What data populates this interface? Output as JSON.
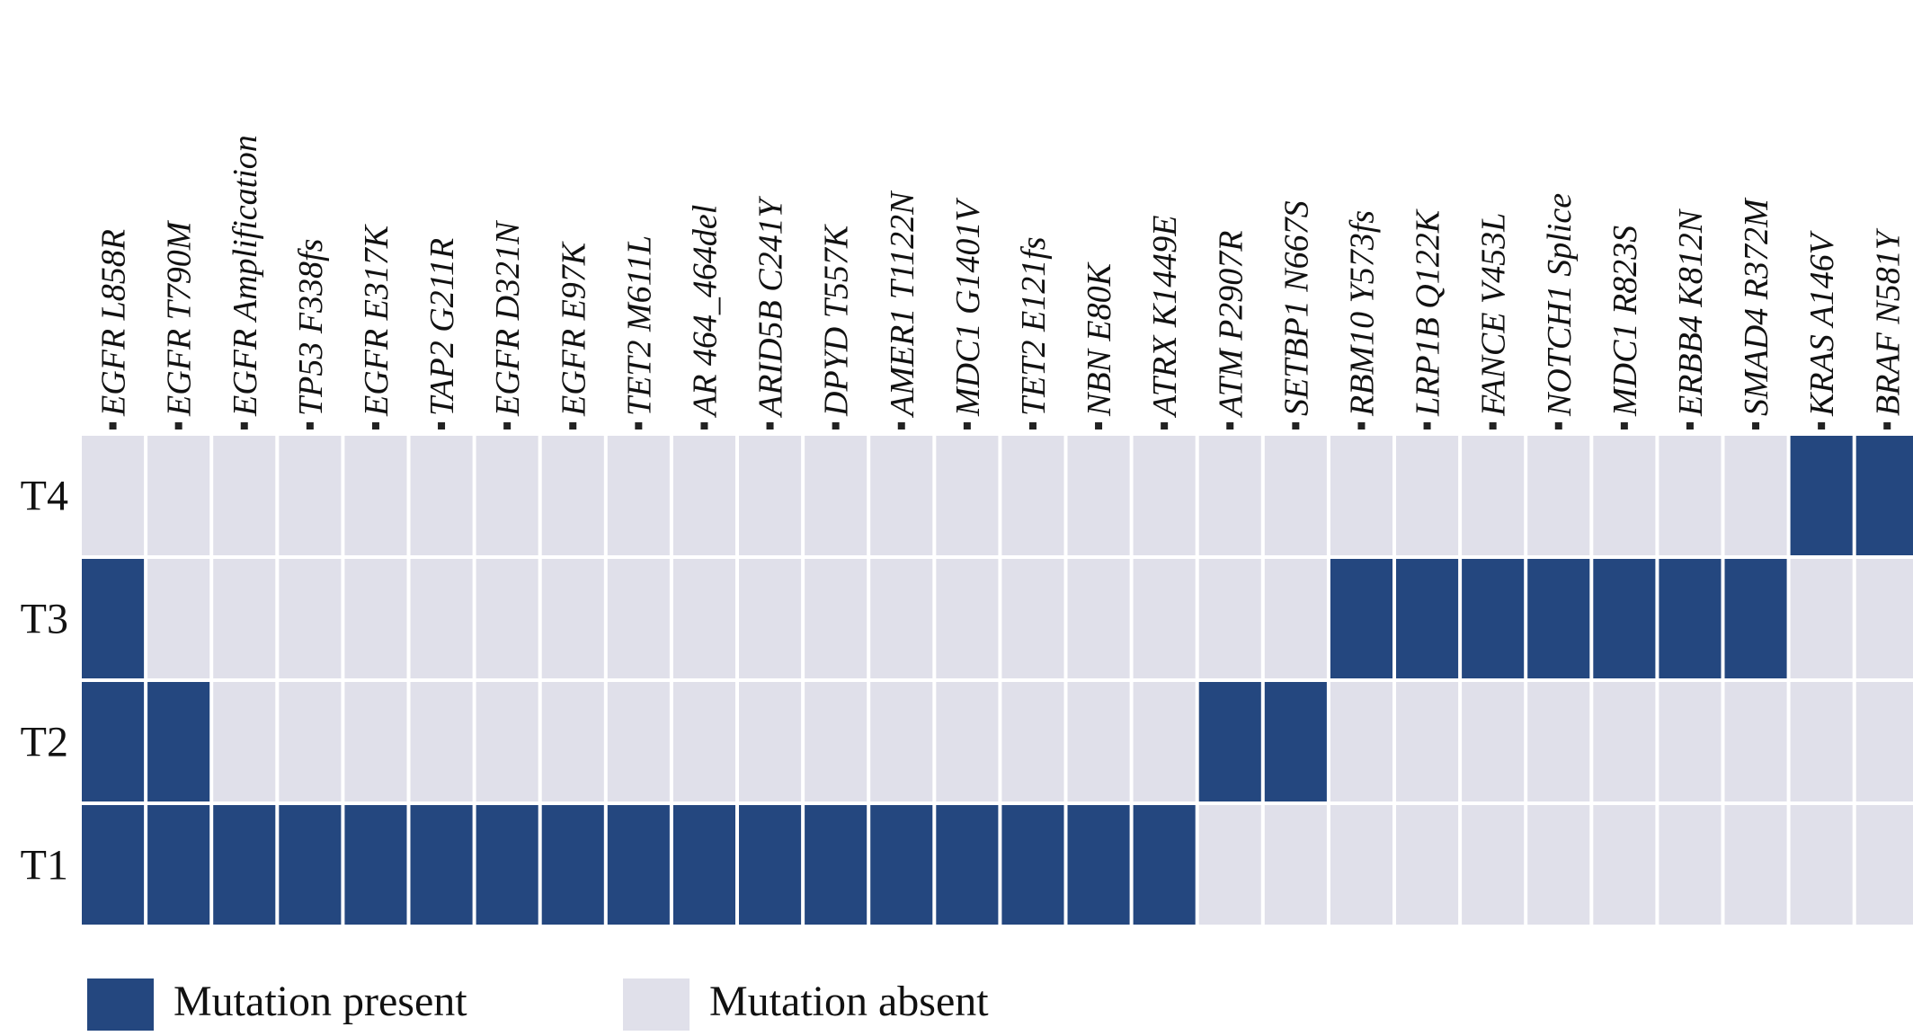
{
  "chart_data": {
    "type": "heatmap",
    "title": "",
    "xlabel": "",
    "ylabel": "",
    "columns": [
      "EGFR L858R",
      "EGFR T790M",
      "EGFR Amplification",
      "TP53 F338fs",
      "EGFR E317K",
      "TAP2 G211R",
      "EGFR D321N",
      "EGFR E97K",
      "TET2 M611L",
      "AR 464_464del",
      "ARID5B C241Y",
      "DPYD T557K",
      "AMER1 T1122N",
      "MDC1 G1401V",
      "TET2 E121fs",
      "NBN E80K",
      "ATRX K1449E",
      "ATM P2907R",
      "SETBP1 N667S",
      "RBM10 Y573fs",
      "LRP1B Q122K",
      "FANCE V453L",
      "NOTCH1 Splice",
      "MDC1 R823S",
      "ERBB4 K812N",
      "SMAD4 R372M",
      "KRAS A146V",
      "BRAF N581Y"
    ],
    "rows": [
      "T4",
      "T3",
      "T2",
      "T1"
    ],
    "values": [
      [
        0,
        0,
        0,
        0,
        0,
        0,
        0,
        0,
        0,
        0,
        0,
        0,
        0,
        0,
        0,
        0,
        0,
        0,
        0,
        0,
        0,
        0,
        0,
        0,
        0,
        0,
        1,
        1
      ],
      [
        1,
        0,
        0,
        0,
        0,
        0,
        0,
        0,
        0,
        0,
        0,
        0,
        0,
        0,
        0,
        0,
        0,
        0,
        0,
        1,
        1,
        1,
        1,
        1,
        1,
        1,
        0,
        0
      ],
      [
        1,
        1,
        0,
        0,
        0,
        0,
        0,
        0,
        0,
        0,
        0,
        0,
        0,
        0,
        0,
        0,
        0,
        1,
        1,
        0,
        0,
        0,
        0,
        0,
        0,
        0,
        0,
        0
      ],
      [
        1,
        1,
        1,
        1,
        1,
        1,
        1,
        1,
        1,
        1,
        1,
        1,
        1,
        1,
        1,
        1,
        1,
        0,
        0,
        0,
        0,
        0,
        0,
        0,
        0,
        0,
        0,
        0
      ]
    ],
    "legend": [
      {
        "label": "Mutation present",
        "value": 1,
        "color": "#24477f"
      },
      {
        "label": "Mutation absent",
        "value": 0,
        "color": "#e0e0ea"
      }
    ],
    "legend_position": "bottom-left",
    "colors": {
      "present": "#24477f",
      "absent": "#e0e0ea",
      "grid": "#ffffff"
    }
  }
}
